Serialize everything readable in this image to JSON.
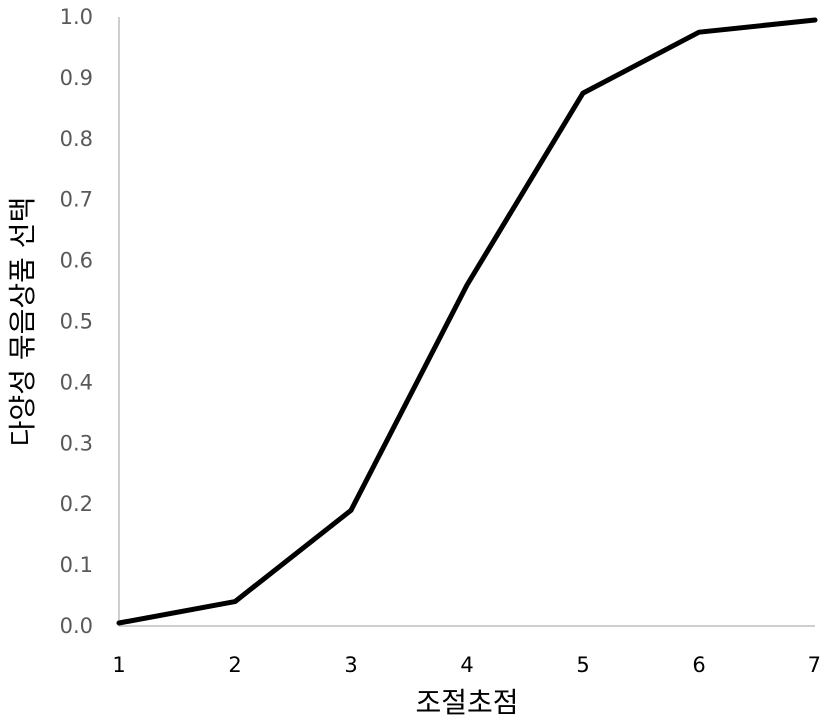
{
  "chart_data": {
    "type": "line",
    "title": "",
    "xlabel": "조절초점",
    "ylabel": "다양성 묶음상품 선택",
    "x": [
      1,
      2,
      3,
      4,
      5,
      6,
      7
    ],
    "x_tick_labels": [
      "1",
      "2",
      "3",
      "4",
      "5",
      "6",
      "7"
    ],
    "y_tick_labels": [
      "0.0",
      "0.1",
      "0.2",
      "0.3",
      "0.4",
      "0.5",
      "0.6",
      "0.7",
      "0.8",
      "0.9",
      "1.0"
    ],
    "xlim": [
      1,
      7
    ],
    "ylim": [
      0,
      1.0
    ],
    "grid": false,
    "legend": "none",
    "series": [
      {
        "values": [
          0.005,
          0.04,
          0.19,
          0.56,
          0.875,
          0.975,
          0.995
        ],
        "color": "#000000"
      }
    ]
  }
}
